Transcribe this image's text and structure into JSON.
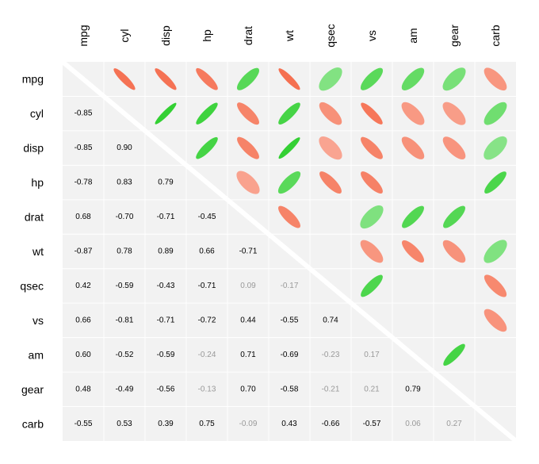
{
  "chart_data": {
    "type": "heatmap",
    "title": "",
    "variables": [
      "mpg",
      "cyl",
      "disp",
      "hp",
      "drat",
      "wt",
      "qsec",
      "vs",
      "am",
      "gear",
      "carb"
    ],
    "matrix": [
      [
        1,
        -0.85,
        -0.85,
        -0.78,
        0.68,
        -0.87,
        0.42,
        0.66,
        0.6,
        0.48,
        -0.55
      ],
      [
        -0.85,
        1,
        0.9,
        0.83,
        -0.7,
        0.78,
        -0.59,
        -0.81,
        -0.52,
        -0.49,
        0.53
      ],
      [
        -0.85,
        0.9,
        1,
        0.79,
        -0.71,
        0.89,
        -0.43,
        -0.71,
        -0.59,
        -0.56,
        0.39
      ],
      [
        -0.78,
        0.83,
        0.79,
        1,
        -0.45,
        0.66,
        -0.71,
        -0.72,
        -0.24,
        -0.13,
        0.75
      ],
      [
        0.68,
        -0.7,
        -0.71,
        -0.45,
        1,
        -0.71,
        0.09,
        0.44,
        0.71,
        0.7,
        -0.09
      ],
      [
        -0.87,
        0.78,
        0.89,
        0.66,
        -0.71,
        1,
        -0.17,
        -0.55,
        -0.69,
        -0.58,
        0.43
      ],
      [
        0.42,
        -0.59,
        -0.43,
        -0.71,
        0.09,
        -0.17,
        1,
        0.74,
        -0.23,
        -0.21,
        -0.66
      ],
      [
        0.66,
        -0.81,
        -0.71,
        -0.72,
        0.44,
        -0.55,
        0.74,
        1,
        0.17,
        0.21,
        -0.57
      ],
      [
        0.6,
        -0.52,
        -0.59,
        -0.24,
        0.71,
        -0.69,
        -0.23,
        0.17,
        1,
        0.79,
        0.06
      ],
      [
        0.48,
        -0.49,
        -0.56,
        -0.13,
        0.7,
        -0.58,
        -0.21,
        0.21,
        0.79,
        1,
        0.27
      ],
      [
        -0.55,
        0.53,
        0.39,
        0.75,
        -0.09,
        0.43,
        -0.66,
        -0.57,
        0.06,
        0.27,
        1
      ]
    ],
    "upper_triangle": "ellipses",
    "lower_triangle": "numbers",
    "significance_threshold": 0.3,
    "colors": {
      "positive": "#22cc22",
      "negative": "#f4603e",
      "panel": "#f2f2f2",
      "grid": "#ffffff",
      "text_strong": "#000000",
      "text_weak": "#999999"
    }
  }
}
